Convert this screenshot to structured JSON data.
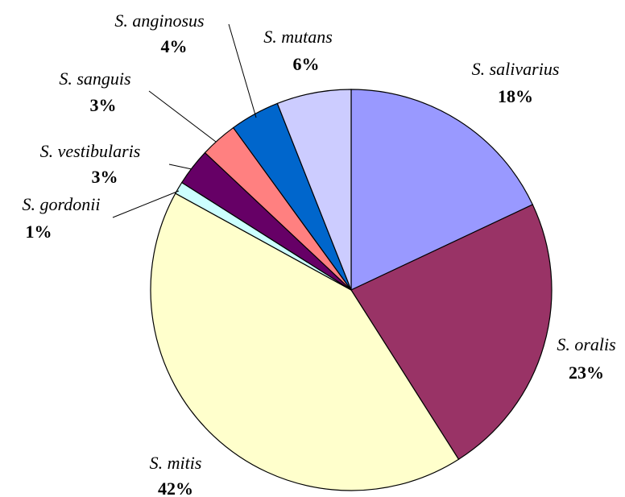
{
  "chart_data": {
    "type": "pie",
    "categories": [
      "S. salivarius",
      "S. oralis",
      "S. mitis",
      "S. gordonii",
      "S. vestibularis",
      "S. sanguis",
      "S. anginosus",
      "S. mutans"
    ],
    "values": [
      18,
      23,
      42,
      1,
      3,
      3,
      4,
      6
    ],
    "value_labels": [
      "18%",
      "23%",
      "42%",
      "1%",
      "3%",
      "3%",
      "4%",
      "6%"
    ],
    "colors": [
      "#9999ff",
      "#993366",
      "#ffffcc",
      "#ccffff",
      "#660066",
      "#ff8080",
      "#0066cc",
      "#ccccff"
    ]
  }
}
